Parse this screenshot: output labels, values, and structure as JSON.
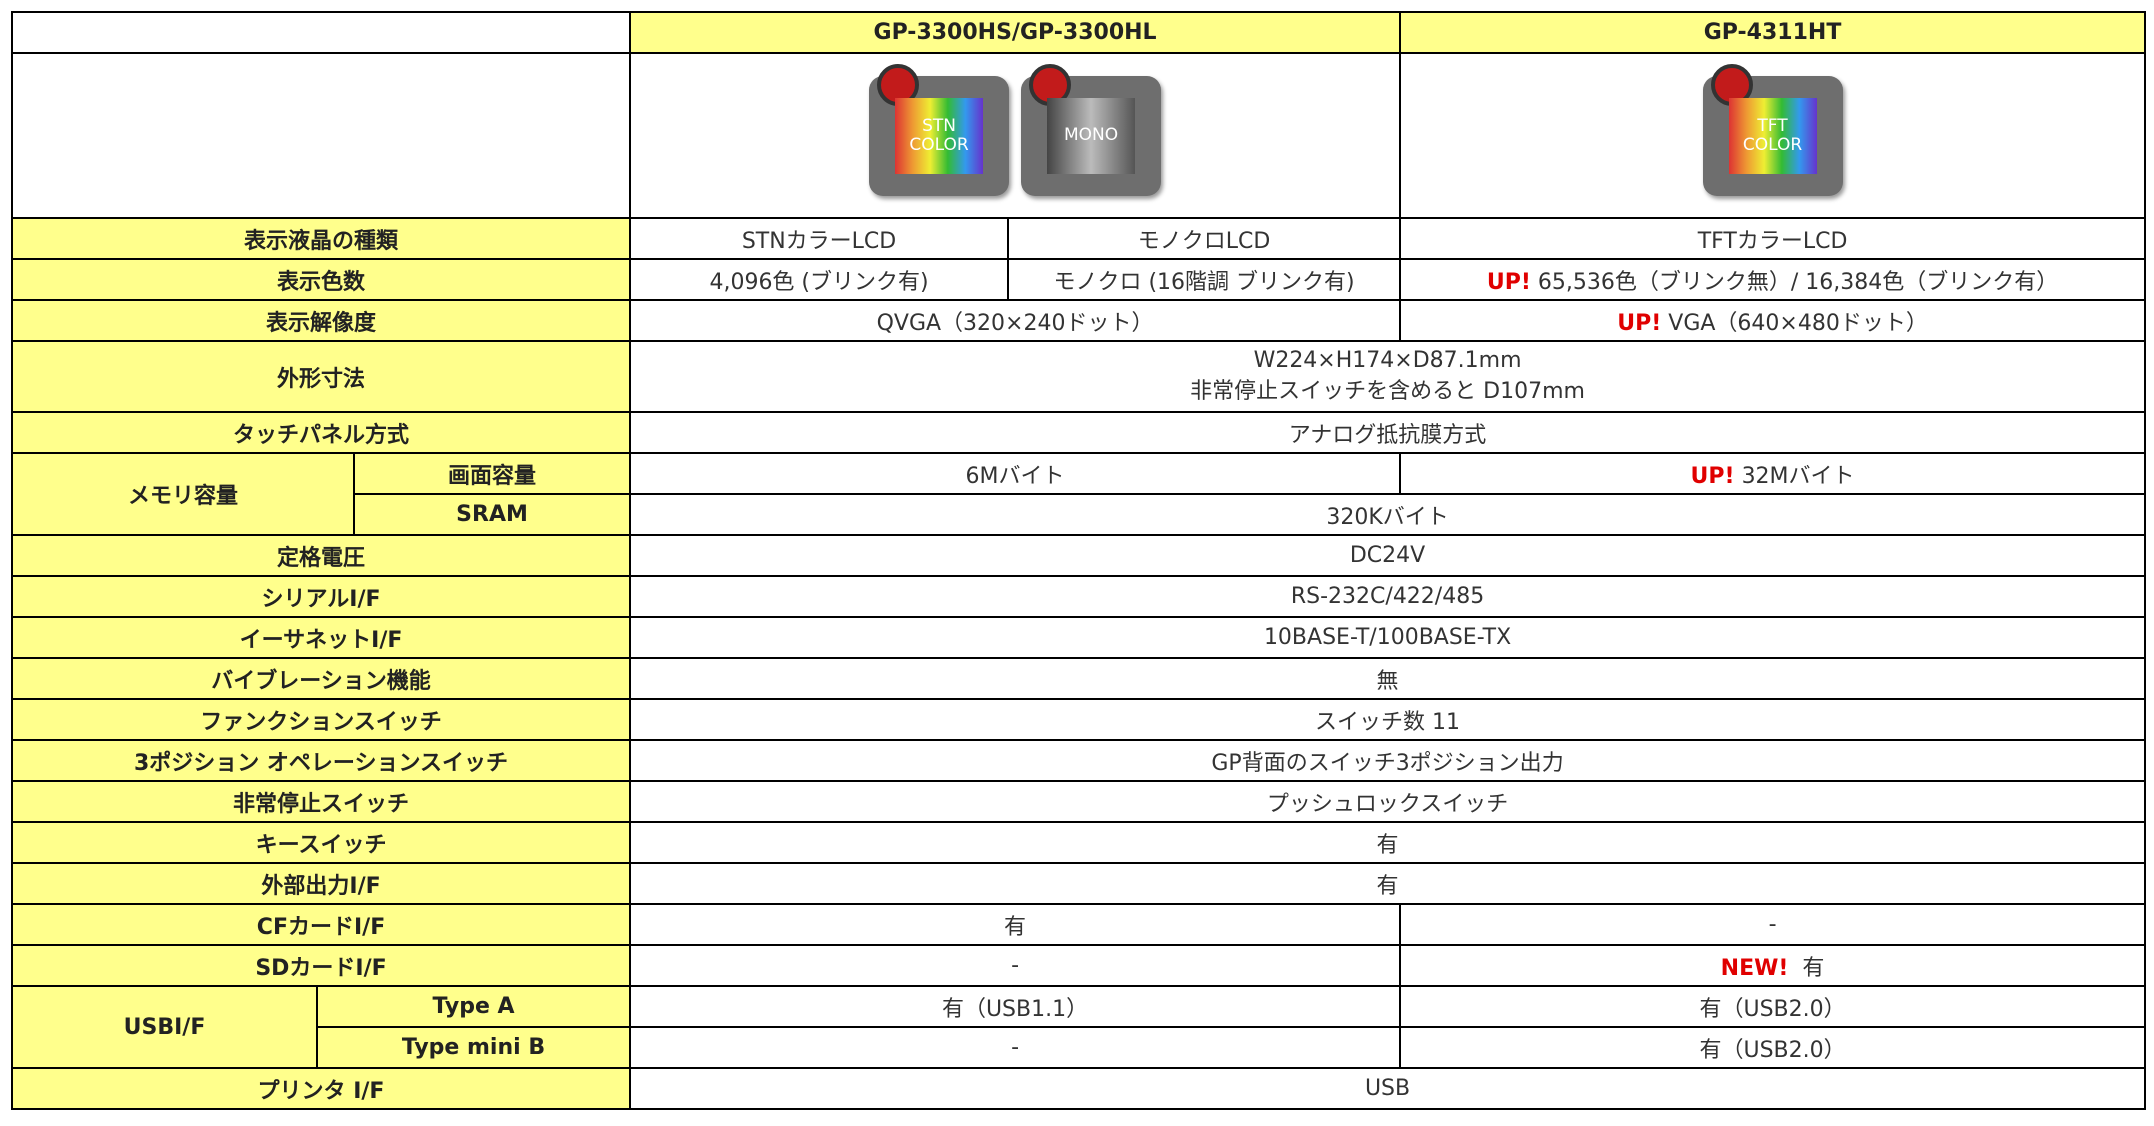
{
  "header": {
    "columns": [
      "GP-3300HS/GP-3300HL",
      "GP-4311HT"
    ]
  },
  "images": [
    "STN COLOR",
    "MONO",
    "TFT COLOR"
  ],
  "rows": [
    {
      "label": "表示液晶の種類",
      "cells": [
        "STNカラーLCD",
        "モノクロLCD",
        "TFTカラーLCD"
      ]
    },
    {
      "label": "表示色数",
      "cells": [
        "4,096色 (ブリンク有)",
        "モノクロ (16階調 ブリンク有)",
        {
          "badge": "UP!",
          "text": "65,536色（ブリンク無）/ 16,384色（ブリンク有）"
        }
      ]
    },
    {
      "label": "表示解像度",
      "cells": [
        "QVGA（320×240ドット）",
        {
          "badge": "UP!",
          "text": "VGA（640×480ドット）"
        }
      ]
    },
    {
      "label": "外形寸法",
      "cells": [
        [
          "W224×H174×D87.1mm",
          "非常停止スイッチを含めると D107mm"
        ]
      ]
    },
    {
      "label": "タッチパネル方式",
      "cells": [
        "アナログ抵抗膜方式"
      ]
    },
    {
      "label": "メモリ容量",
      "sub": "画面容量",
      "cells": [
        "6Mバイト",
        {
          "badge": "UP!",
          "text": "32Mバイト"
        }
      ]
    },
    {
      "sub": "SRAM",
      "cells": [
        "320Kバイト"
      ]
    },
    {
      "label": "定格電圧",
      "cells": [
        "DC24V"
      ]
    },
    {
      "label": "シリアルI/F",
      "cells": [
        "RS-232C/422/485"
      ]
    },
    {
      "label": "イーサネットI/F",
      "cells": [
        "10BASE-T/100BASE-TX"
      ]
    },
    {
      "label": "バイブレーション機能",
      "cells": [
        "無"
      ]
    },
    {
      "label": "ファンクションスイッチ",
      "cells": [
        "スイッチ数 11"
      ]
    },
    {
      "label": "3ポジション オペレーションスイッチ",
      "cells": [
        "GP背面のスイッチ3ポジション出力"
      ]
    },
    {
      "label": "非常停止スイッチ",
      "cells": [
        "プッシュロックスイッチ"
      ]
    },
    {
      "label": "キースイッチ",
      "cells": [
        "有"
      ]
    },
    {
      "label": "外部出力I/F",
      "cells": [
        "有"
      ]
    },
    {
      "label": "CFカードI/F",
      "cells": [
        "有",
        "-"
      ]
    },
    {
      "label": "SDカードI/F",
      "cells": [
        "-",
        {
          "badge": "NEW!",
          "text": "有"
        }
      ]
    },
    {
      "label": "USBI/F",
      "sub": "Type A",
      "cells": [
        "有（USB1.1）",
        "有（USB2.0）"
      ]
    },
    {
      "sub": "Type mini B",
      "cells": [
        "-",
        "有（USB2.0）"
      ]
    },
    {
      "label": "プリンタ I/F",
      "cells": [
        "USB"
      ]
    }
  ]
}
